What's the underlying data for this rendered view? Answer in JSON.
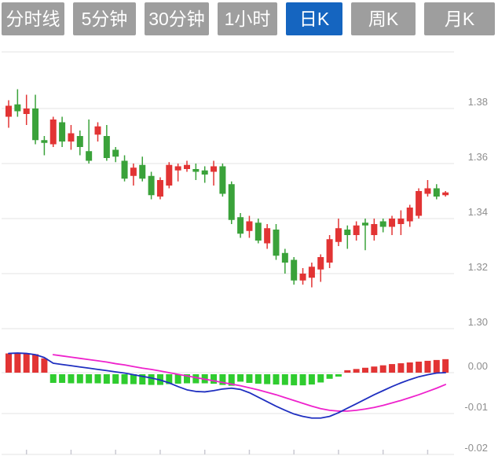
{
  "tabs": [
    {
      "label": "分时线",
      "active": false
    },
    {
      "label": "5分钟",
      "active": false
    },
    {
      "label": "30分钟",
      "active": false
    },
    {
      "label": "1小时",
      "active": false
    },
    {
      "label": "日K",
      "active": true
    },
    {
      "label": "周K",
      "active": false
    },
    {
      "label": "月K",
      "active": false
    }
  ],
  "colors": {
    "tab_bg": "#9e9e9e",
    "tab_active_bg": "#1565c0",
    "tab_text": "#ffffff",
    "candle_up": "#e23434",
    "candle_down": "#3aa23a",
    "hist_up": "#e23434",
    "hist_down": "#2fcc2f",
    "dif_line": "#1f2fc0",
    "dea_line": "#ee22cc",
    "grid": "#e3e3e3",
    "axis_text": "#8e8e8e",
    "tick": "#c9c9d2"
  },
  "chart_data": [
    {
      "type": "candlestick",
      "title": "daily K-line price panel",
      "candle_order": [
        "open",
        "high",
        "low",
        "close"
      ],
      "up_means": "close >= open (red)",
      "y_axis": {
        "labels": [
          "1.38",
          "1.36",
          "1.34",
          "1.32",
          "1.30"
        ],
        "values": [
          1.38,
          1.36,
          1.34,
          1.32,
          1.3
        ],
        "range_shown": [
          1.296,
          1.401
        ],
        "grid": true,
        "unlabeled_top_grid_value": 1.4006
      },
      "x_axis": {
        "labels": [],
        "tick_every_n_candles": 5,
        "first_tick_index": 2
      },
      "candles": [
        [
          1.377,
          1.383,
          1.373,
          1.381
        ],
        [
          1.3815,
          1.387,
          1.377,
          1.379
        ],
        [
          1.378,
          1.385,
          1.374,
          1.38
        ],
        [
          1.38,
          1.385,
          1.367,
          1.3685
        ],
        [
          1.3685,
          1.37,
          1.363,
          1.3675
        ],
        [
          1.367,
          1.377,
          1.366,
          1.376
        ],
        [
          1.375,
          1.377,
          1.366,
          1.368
        ],
        [
          1.368,
          1.374,
          1.365,
          1.371
        ],
        [
          1.37,
          1.372,
          1.363,
          1.366
        ],
        [
          1.3645,
          1.376,
          1.36,
          1.361
        ],
        [
          1.3705,
          1.375,
          1.368,
          1.3735
        ],
        [
          1.37,
          1.374,
          1.361,
          1.362
        ],
        [
          1.365,
          1.366,
          1.3605,
          1.3625
        ],
        [
          1.361,
          1.363,
          1.3535,
          1.3545
        ],
        [
          1.3555,
          1.36,
          1.352,
          1.3585
        ],
        [
          1.3595,
          1.3625,
          1.3535,
          1.3545
        ],
        [
          1.3555,
          1.357,
          1.347,
          1.3485
        ],
        [
          1.348,
          1.355,
          1.347,
          1.354
        ],
        [
          1.352,
          1.3605,
          1.351,
          1.3595
        ],
        [
          1.3575,
          1.36,
          1.3535,
          1.359
        ],
        [
          1.358,
          1.361,
          1.357,
          1.3595
        ],
        [
          1.358,
          1.36,
          1.354,
          1.357
        ],
        [
          1.3575,
          1.359,
          1.353,
          1.356
        ],
        [
          1.357,
          1.361,
          1.352,
          1.359
        ],
        [
          1.359,
          1.36,
          1.348,
          1.349
        ],
        [
          1.3525,
          1.3535,
          1.338,
          1.3395
        ],
        [
          1.3405,
          1.342,
          1.333,
          1.3345
        ],
        [
          1.3355,
          1.341,
          1.333,
          1.339
        ],
        [
          1.3385,
          1.34,
          1.331,
          1.332
        ],
        [
          1.331,
          1.338,
          1.329,
          1.3365
        ],
        [
          1.336,
          1.338,
          1.325,
          1.3265
        ],
        [
          1.3275,
          1.329,
          1.32,
          1.324
        ],
        [
          1.325,
          1.326,
          1.316,
          1.3175
        ],
        [
          1.3175,
          1.322,
          1.316,
          1.32
        ],
        [
          1.3185,
          1.324,
          1.315,
          1.3225
        ],
        [
          1.3215,
          1.327,
          1.317,
          1.326
        ],
        [
          1.324,
          1.334,
          1.322,
          1.3325
        ],
        [
          1.3315,
          1.34,
          1.33,
          1.3365
        ],
        [
          1.336,
          1.3375,
          1.329,
          1.334
        ],
        [
          1.334,
          1.339,
          1.332,
          1.3375
        ],
        [
          1.3385,
          1.34,
          1.3285,
          1.3375
        ],
        [
          1.334,
          1.34,
          1.332,
          1.338
        ],
        [
          1.339,
          1.34,
          1.335,
          1.337
        ],
        [
          1.337,
          1.341,
          1.334,
          1.34
        ],
        [
          1.338,
          1.343,
          1.334,
          1.34
        ],
        [
          1.339,
          1.345,
          1.337,
          1.344
        ],
        [
          1.341,
          1.351,
          1.34,
          1.35
        ],
        [
          1.349,
          1.354,
          1.348,
          1.351
        ],
        [
          1.351,
          1.3525,
          1.347,
          1.348
        ],
        [
          1.3485,
          1.35,
          1.348,
          1.3495
        ]
      ]
    },
    {
      "type": "macd",
      "title": "MACD indicator panel",
      "y_axis": {
        "labels": [
          "0.00",
          "-0.01",
          "-0.02"
        ],
        "values": [
          0,
          -0.01,
          -0.02
        ],
        "grid": true
      },
      "histogram": [
        0.0047,
        0.0048,
        0.0047,
        0.0045,
        0.0035,
        -0.0025,
        -0.0025,
        -0.0026,
        -0.0026,
        -0.0026,
        -0.0026,
        -0.0027,
        -0.0027,
        -0.0028,
        -0.0028,
        -0.0029,
        -0.003,
        -0.003,
        -0.0028,
        -0.0027,
        -0.0026,
        -0.0026,
        -0.0026,
        -0.0027,
        -0.003,
        -0.0032,
        -0.0022,
        -0.0025,
        -0.0027,
        -0.0028,
        -0.0029,
        -0.003,
        -0.0031,
        -0.0031,
        -0.0029,
        -0.0024,
        -0.0015,
        -0.0008,
        0.0006,
        0.0009,
        0.0012,
        0.0015,
        0.0018,
        0.0021,
        0.0023,
        0.0025,
        0.0027,
        0.0029,
        0.0031,
        0.0033
      ],
      "dif": [
        0.0047,
        0.0048,
        0.0047,
        0.0044,
        0.0037,
        0.0023,
        0.002,
        0.0017,
        0.0014,
        0.0011,
        0.0008,
        0.0005,
        0.0002,
        -0.0001,
        -0.0005,
        -0.0009,
        -0.0013,
        -0.0018,
        -0.0025,
        -0.0034,
        -0.0042,
        -0.0046,
        -0.0047,
        -0.0044,
        -0.004,
        -0.0038,
        -0.0041,
        -0.0049,
        -0.006,
        -0.0071,
        -0.0082,
        -0.0092,
        -0.0101,
        -0.0107,
        -0.0111,
        -0.0111,
        -0.0107,
        -0.0098,
        -0.0087,
        -0.0076,
        -0.0065,
        -0.0054,
        -0.0044,
        -0.0034,
        -0.0025,
        -0.0017,
        -0.001,
        -0.0005,
        -0.0001,
        0.0
      ],
      "dea": [
        null,
        null,
        null,
        null,
        null,
        0.0044,
        0.0041,
        0.0038,
        0.0035,
        0.0032,
        0.0029,
        0.0026,
        0.0022,
        0.0019,
        0.0015,
        0.0011,
        0.0008,
        0.0004,
        0.0,
        -0.0004,
        -0.0008,
        -0.0012,
        -0.0016,
        -0.002,
        -0.0024,
        -0.0028,
        -0.0032,
        -0.0037,
        -0.0042,
        -0.0048,
        -0.0054,
        -0.0061,
        -0.0068,
        -0.0075,
        -0.0082,
        -0.0088,
        -0.0092,
        -0.0094,
        -0.0094,
        -0.0092,
        -0.0089,
        -0.0085,
        -0.008,
        -0.0074,
        -0.0068,
        -0.0061,
        -0.0054,
        -0.0046,
        -0.0038,
        -0.0029
      ]
    }
  ]
}
